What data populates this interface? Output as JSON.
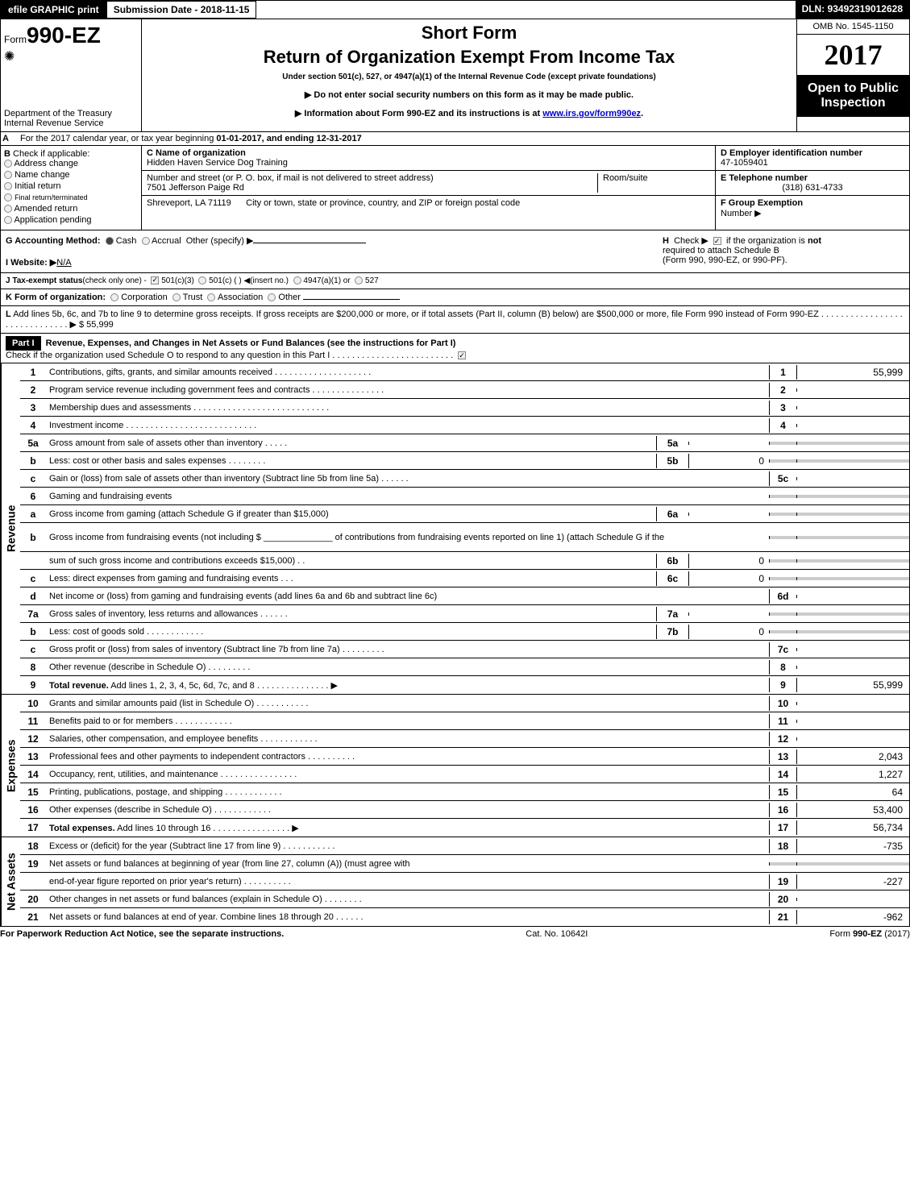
{
  "header": {
    "efile_btn": "efile GRAPHIC print",
    "submission_date_label": "Submission Date - 2018-11-15",
    "dln": "DLN: 93492319012628"
  },
  "title_block": {
    "form_prefix": "Form",
    "form_number": "990-EZ",
    "treasury_line1": "Department of the Treasury",
    "treasury_line2": "Internal Revenue Service",
    "short_form": "Short Form",
    "main_title": "Return of Organization Exempt From Income Tax",
    "subtitle": "Under section 501(c), 527, or 4947(a)(1) of the Internal Revenue Code (except private foundations)",
    "inst1": "▶ Do not enter social security numbers on this form as it may be made public.",
    "inst2_prefix": "▶ Information about Form 990-EZ and its instructions is at ",
    "inst2_link": "www.irs.gov/form990ez",
    "inst2_suffix": ".",
    "omb": "OMB No. 1545-1150",
    "year": "2017",
    "open_line1": "Open to Public",
    "open_line2": "Inspection"
  },
  "section_a": {
    "label": "A",
    "text_prefix": "For the 2017 calendar year, or tax year beginning ",
    "begin": "01-01-2017",
    "middle": ", and ending ",
    "end": "12-31-2017"
  },
  "section_b": {
    "label": "B",
    "title": "Check if applicable:",
    "items": [
      "Address change",
      "Name change",
      "Initial return",
      "Final return/terminated",
      "Amended return",
      "Application pending"
    ]
  },
  "section_c": {
    "label": "C Name of organization",
    "name": "Hidden Haven Service Dog Training",
    "street_label": "Number and street (or P. O. box, if mail is not delivered to street address)",
    "street": "7501 Jefferson Paige Rd",
    "room_label": "Room/suite",
    "city_label": "City or town, state or province, country, and ZIP or foreign postal code",
    "city": "Shreveport, LA  71119"
  },
  "section_d": {
    "label": "D Employer identification number",
    "ein": "47-1059401",
    "e_label": "E Telephone number",
    "phone": "(318) 631-4733",
    "f_label": "F Group Exemption",
    "f_label2": "Number    ▶"
  },
  "section_g": {
    "label": "G Accounting Method:",
    "cash": "Cash",
    "accrual": "Accrual",
    "other": "Other (specify) ▶",
    "website_label": "I Website: ▶",
    "website": "N/A"
  },
  "section_h": {
    "label": "H",
    "text1": "Check ▶",
    "text2": "if the organization is",
    "text3": "not",
    "text4": "required to attach Schedule B",
    "text5": "(Form 990, 990-EZ, or 990-PF)."
  },
  "section_j": {
    "label": "J Tax-exempt status",
    "detail": "(check only one) -",
    "opt1": "501(c)(3)",
    "opt2": "501(c) (   ) ◀(insert no.)",
    "opt3": "4947(a)(1) or",
    "opt4": "527"
  },
  "section_k": {
    "label": "K Form of organization:",
    "opts": [
      "Corporation",
      "Trust",
      "Association",
      "Other"
    ]
  },
  "section_l": {
    "label": "L",
    "text": "Add lines 5b, 6c, and 7b to line 9 to determine gross receipts. If gross receipts are $200,000 or more, or if total assets (Part II, column (B) below) are $500,000 or more, file Form 990 instead of Form 990-EZ  .  .  .  .  .  .  .  .  .  .  .  .  .  .  .  .  .  .  .  .  .  .  .  .  .  .  .  .  .  . ▶",
    "amount": "$ 55,999"
  },
  "part1": {
    "label": "Part I",
    "title": "Revenue, Expenses, and Changes in Net Assets or Fund Balances (see the instructions for Part I)",
    "check_text": "Check if the organization used Schedule O to respond to any question in this Part I .  .  .  .  .  .  .  .  .  .  .  .  .  .  .  .  .  .  .  .  .  .  .  .  ."
  },
  "side_labels": {
    "revenue": "Revenue",
    "expenses": "Expenses",
    "netassets": "Net Assets"
  },
  "lines": [
    {
      "n": "1",
      "d": "Contributions, gifts, grants, and similar amounts received .  .  .  .  .  .  .  .  .  .  .  .  .  .  .  .  .  .  .  .",
      "box": "1",
      "val": "55,999"
    },
    {
      "n": "2",
      "d": "Program service revenue including government fees and contracts .  .  .  .  .  .  .  .  .  .  .  .  .  .  .",
      "box": "2",
      "val": ""
    },
    {
      "n": "3",
      "d": "Membership dues and assessments .  .  .  .  .  .  .  .  .  .  .  .  .  .  .  .  .  .  .  .  .  .  .  .  .  .  .  .",
      "box": "3",
      "val": ""
    },
    {
      "n": "4",
      "d": "Investment income .  .  .  .  .  .  .  .  .  .  .  .  .  .  .  .  .  .  .  .  .  .  .  .  .  .  .",
      "box": "4",
      "val": ""
    },
    {
      "n": "5a",
      "d": "Gross amount from sale of assets other than inventory .  .  .  .  .",
      "mid": "5a",
      "midval": "",
      "box": "",
      "val": "",
      "gray": true
    },
    {
      "n": "b",
      "d": "Less: cost or other basis and sales expenses .  .  .  .  .  .  .  .",
      "mid": "5b",
      "midval": "0",
      "box": "",
      "val": "",
      "gray": true
    },
    {
      "n": "c",
      "d": "Gain or (loss) from sale of assets other than inventory (Subtract line 5b from line 5a)           .  .  .  .  .  .",
      "box": "5c",
      "val": ""
    },
    {
      "n": "6",
      "d": "Gaming and fundraising events",
      "box": "",
      "val": "",
      "gray": true
    },
    {
      "n": "a",
      "d": "Gross income from gaming (attach Schedule G if greater than $15,000)",
      "mid": "6a",
      "midval": "",
      "box": "",
      "val": "",
      "gray": true
    },
    {
      "n": "b",
      "d": "Gross income from fundraising events (not including $ ______________ of contributions from fundraising events reported on line 1) (attach Schedule G if the",
      "box": "",
      "val": "",
      "gray": true,
      "tall": true
    },
    {
      "n": "",
      "d": "sum of such gross income and contributions exceeds $15,000)        .   .",
      "mid": "6b",
      "midval": "0",
      "box": "",
      "val": "",
      "gray": true
    },
    {
      "n": "c",
      "d": "Less: direct expenses from gaming and fundraising events          .   .   .",
      "mid": "6c",
      "midval": "0",
      "box": "",
      "val": "",
      "gray": true
    },
    {
      "n": "d",
      "d": "Net income or (loss) from gaming and fundraising events (add lines 6a and 6b and subtract line 6c)",
      "box": "6d",
      "val": ""
    },
    {
      "n": "7a",
      "d": "Gross sales of inventory, less returns and allowances           .  .  .  .  .  .",
      "mid": "7a",
      "midval": "",
      "box": "",
      "val": "",
      "gray": true
    },
    {
      "n": "b",
      "d": "Less: cost of goods sold                .  .  .  .  .  .  .  .  .  .  .  .",
      "mid": "7b",
      "midval": "0",
      "box": "",
      "val": "",
      "gray": true
    },
    {
      "n": "c",
      "d": "Gross profit or (loss) from sales of inventory (Subtract line 7b from line 7a)       .  .  .  .  .  .  .  .  .",
      "box": "7c",
      "val": ""
    },
    {
      "n": "8",
      "d": "Other revenue (describe in Schedule O)                     .  .  .  .  .  .  .  .  .",
      "box": "8",
      "val": ""
    },
    {
      "n": "9",
      "d": "Total revenue. Add lines 1, 2, 3, 4, 5c, 6d, 7c, and 8       .  .  .  .  .  .  .  .  .  .  .  .  .  .  .  ▶",
      "box": "9",
      "val": "55,999",
      "bold": true
    }
  ],
  "exp_lines": [
    {
      "n": "10",
      "d": "Grants and similar amounts paid (list in Schedule O)              .  .  .  .  .  .  .  .  .  .  .",
      "box": "10",
      "val": ""
    },
    {
      "n": "11",
      "d": "Benefits paid to or for members                    .  .  .  .  .  .  .  .  .  .  .  .",
      "box": "11",
      "val": ""
    },
    {
      "n": "12",
      "d": "Salaries, other compensation, and employee benefits         .  .  .  .  .  .  .  .  .  .  .  .",
      "box": "12",
      "val": ""
    },
    {
      "n": "13",
      "d": "Professional fees and other payments to independent contractors      .  .  .  .  .  .  .  .  .  .",
      "box": "13",
      "val": "2,043"
    },
    {
      "n": "14",
      "d": "Occupancy, rent, utilities, and maintenance        .  .  .  .  .  .  .  .  .  .  .  .  .  .  .  .",
      "box": "14",
      "val": "1,227"
    },
    {
      "n": "15",
      "d": "Printing, publications, postage, and shipping               .  .  .  .  .  .  .  .  .  .  .  .",
      "box": "15",
      "val": "64"
    },
    {
      "n": "16",
      "d": "Other expenses (describe in Schedule O)                 .  .  .  .  .  .  .  .  .  .  .  .",
      "box": "16",
      "val": "53,400"
    },
    {
      "n": "17",
      "d": "Total expenses. Add lines 10 through 16            .  .  .  .  .  .  .  .  .  .  .  .  .  .  .  .  ▶",
      "box": "17",
      "val": "56,734",
      "bold": true
    }
  ],
  "na_lines": [
    {
      "n": "18",
      "d": "Excess or (deficit) for the year (Subtract line 17 from line 9)          .  .  .  .  .  .  .  .  .  .  .",
      "box": "18",
      "val": "-735"
    },
    {
      "n": "19",
      "d": "Net assets or fund balances at beginning of year (from line 27, column (A)) (must agree with",
      "box": "",
      "val": "",
      "gray": true
    },
    {
      "n": "",
      "d": "end-of-year figure reported on prior year's return)             .  .  .  .  .  .  .  .  .  .",
      "box": "19",
      "val": "-227"
    },
    {
      "n": "20",
      "d": "Other changes in net assets or fund balances (explain in Schedule O)       .  .  .  .  .  .  .  .",
      "box": "20",
      "val": ""
    },
    {
      "n": "21",
      "d": "Net assets or fund balances at end of year. Combine lines 18 through 20        .  .  .  .  .  .",
      "box": "21",
      "val": "-962"
    }
  ],
  "footer": {
    "left": "For Paperwork Reduction Act Notice, see the separate instructions.",
    "center": "Cat. No. 10642I",
    "right_prefix": "Form ",
    "right_form": "990-EZ",
    "right_suffix": " (2017)"
  }
}
